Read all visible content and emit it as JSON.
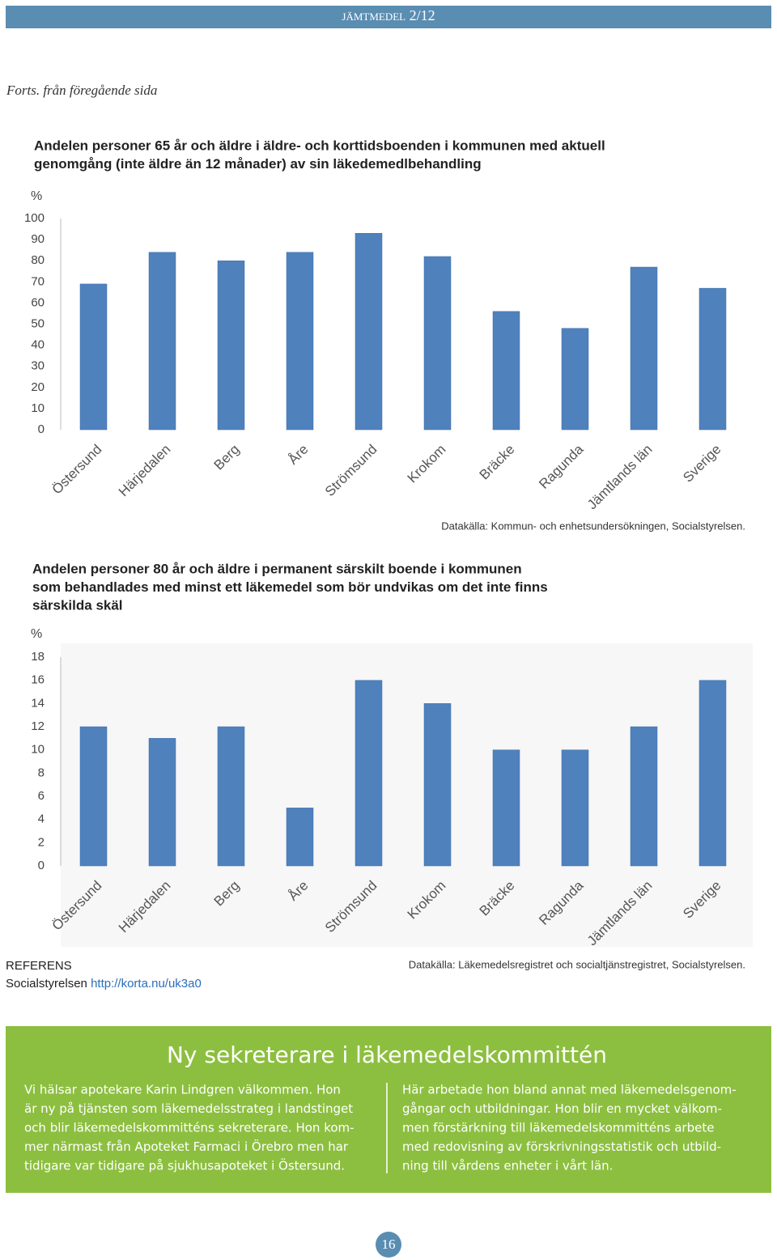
{
  "header": {
    "title": "jämtmedel 2/12"
  },
  "continued": "Forts. från föregående sida",
  "chart_data": [
    {
      "type": "bar",
      "title": [
        "Andelen personer 65 år och äldre i äldre- och korttidsboenden i kommunen med aktuell",
        "genomgång (inte äldre än 12 månader) av sin läkedemedlbehandling"
      ],
      "y_label": "%",
      "categories": [
        "Östersund",
        "Härjedalen",
        "Berg",
        "Åre",
        "Strömsund",
        "Krokom",
        "Bräcke",
        "Ragunda",
        "Jämtlands län",
        "Sverige"
      ],
      "values": [
        69,
        84,
        80,
        84,
        93,
        82,
        56,
        48,
        77,
        67
      ],
      "color": "#4f81bd",
      "ylim": [
        0,
        100
      ],
      "yticks": [
        0,
        10,
        20,
        30,
        40,
        50,
        60,
        70,
        80,
        90,
        100
      ],
      "source": "Datakälla: Kommun- och enhetsundersökningen, Socialstyrelsen."
    },
    {
      "type": "bar",
      "title": [
        "Andelen personer 80 år och äldre i permanent särskilt boende i kommunen",
        "som behandlades med minst ett läkemedel som bör undvikas om det inte finns",
        "särskilda skäl"
      ],
      "y_label": "%",
      "categories": [
        "Östersund",
        "Härjedalen",
        "Berg",
        "Åre",
        "Strömsund",
        "Krokom",
        "Bräcke",
        "Ragunda",
        "Jämtlands län",
        "Sverige"
      ],
      "values": [
        12,
        11,
        12,
        5,
        16,
        14,
        10,
        10,
        12,
        16
      ],
      "color": "#4f81bd",
      "ylim": [
        0,
        18
      ],
      "yticks": [
        0,
        2,
        4,
        6,
        8,
        10,
        12,
        14,
        16,
        18
      ],
      "source": "Datakälla: Läkemedelsregistret och socialtjänstregistret, Socialstyrelsen."
    }
  ],
  "references": {
    "heading": "REFERENS",
    "source": "Socialstyrelsen",
    "link": "http://korta.nu/uk3a0"
  },
  "article": {
    "title": "Ny sekreterare i läkemedelskommittén",
    "columns": [
      [
        "Vi hälsar apotekare Karin Lindgren välkommen. Hon",
        "är ny på tjänsten som läkemedelsstrateg i landstinget",
        "och blir läkemedelskommitténs sekreterare. Hon kom-",
        "mer närmast från Apoteket Farmaci i Örebro men har",
        "tidigare var tidigare på sjukhusapoteket i Östersund."
      ],
      [
        "Här arbetade hon bland annat med läkemedelsgenom-",
        "gångar och utbildningar. Hon blir en mycket välkom-",
        "men förstärkning till läkemedelskommitténs arbete",
        "med redovisning av förskrivningsstatistik och utbild-",
        "ning till vårdens enheter i vårt län."
      ]
    ]
  },
  "page_number": 16
}
